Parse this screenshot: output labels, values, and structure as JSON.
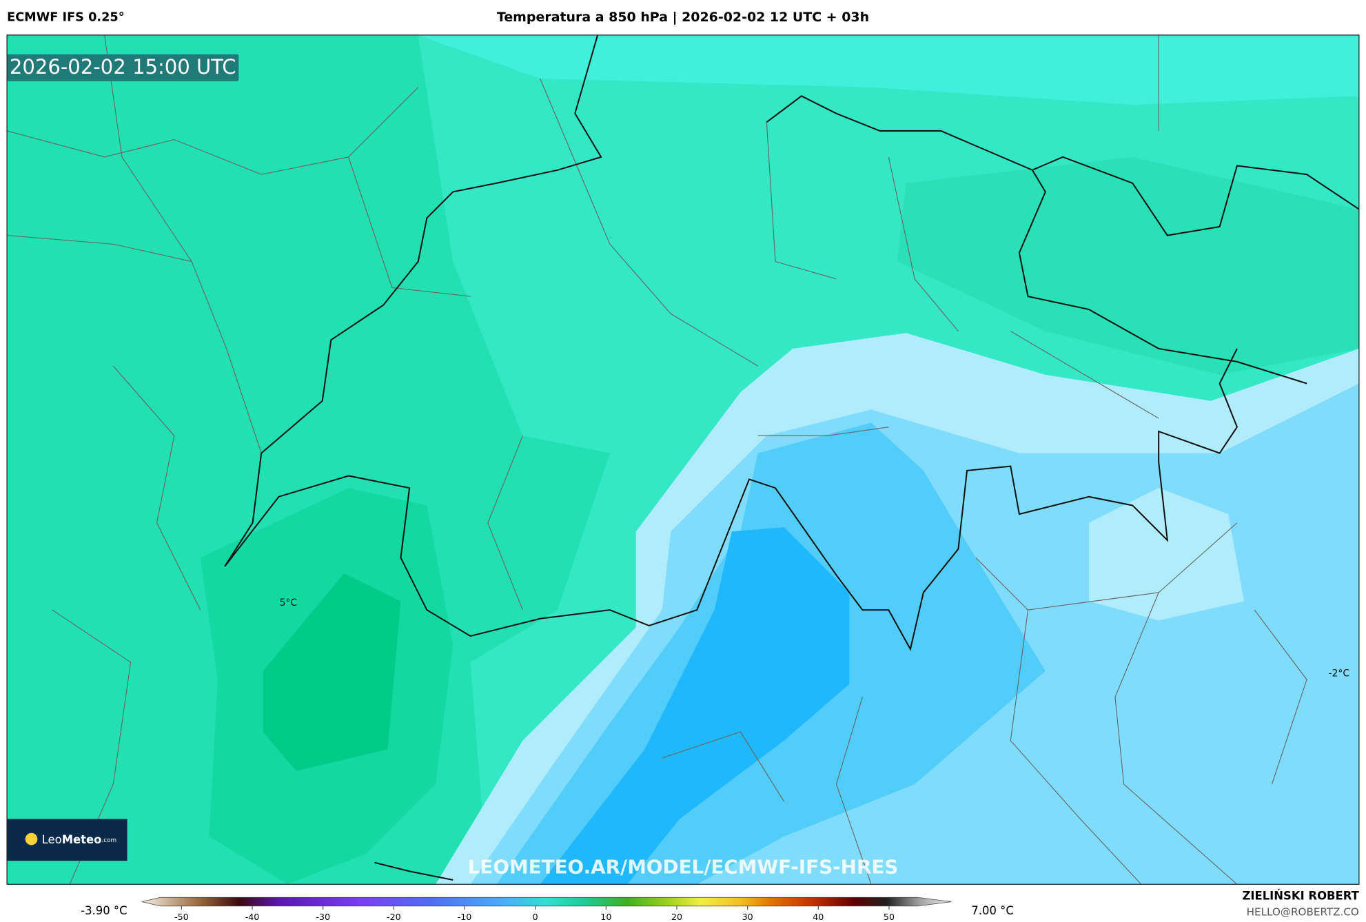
{
  "header": {
    "model": "ECMWF IFS 0.25°",
    "title": "Temperatura a 850 hPa | 2026-02-02 12 UTC + 03h"
  },
  "map": {
    "timestamp": "2026-02-02 15:00 UTC",
    "contour_labels": [
      "5°C",
      "-2°C"
    ],
    "watermark": "LEOMETEO.AR/MODEL/ECMWF-IFS-HRES",
    "logo": {
      "name_light": "Leo",
      "name_bold": "Meteo",
      "suffix": ".com"
    }
  },
  "colorbar": {
    "min_label": "-3.90 °C",
    "max_label": "7.00 °C",
    "lim": [
      -53,
      54
    ],
    "ticks": [
      -50,
      -40,
      -30,
      -20,
      -10,
      0,
      10,
      20,
      30,
      40,
      50
    ]
  },
  "footer": {
    "author": "ZIELIŃSKI ROBERT",
    "contact": "HELLO@ROBERTZ.CO"
  }
}
